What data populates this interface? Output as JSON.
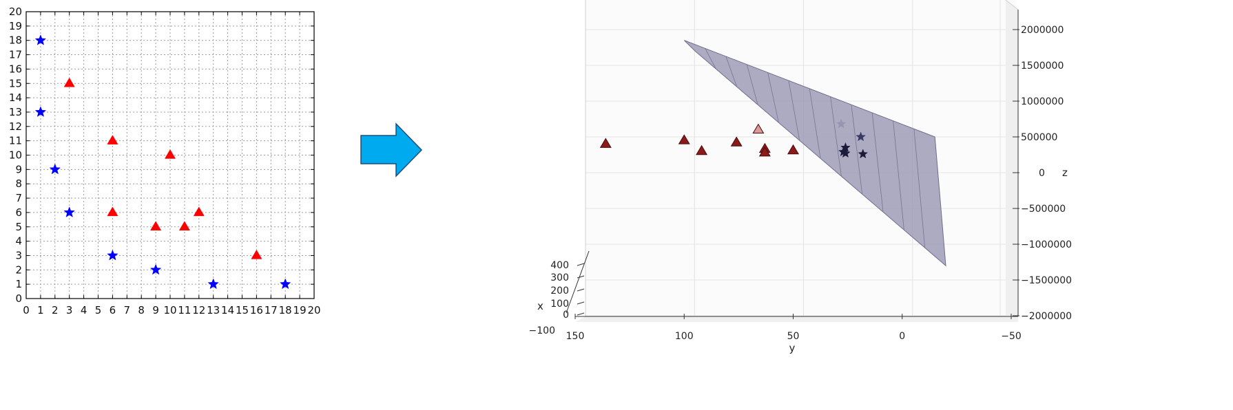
{
  "chart_data": [
    {
      "type": "scatter",
      "title": "",
      "xlabel": "",
      "ylabel": "",
      "xlim": [
        0,
        20
      ],
      "ylim": [
        0,
        20
      ],
      "xticks": [
        "0",
        "1",
        "2",
        "3",
        "4",
        "5",
        "6",
        "7",
        "8",
        "9",
        "10",
        "11",
        "12",
        "13",
        "14",
        "15",
        "16",
        "17",
        "18",
        "19",
        "20"
      ],
      "yticks": [
        "0",
        "1",
        "2",
        "3",
        "4",
        "5",
        "6",
        "7",
        "8",
        "9",
        "10",
        "11",
        "12",
        "13",
        "14",
        "15",
        "16",
        "17",
        "18",
        "19",
        "20"
      ],
      "grid": true,
      "series": [
        {
          "marker": "star",
          "color": "#0000ff",
          "points": [
            [
              1,
              18
            ],
            [
              1,
              13
            ],
            [
              2,
              9
            ],
            [
              3,
              6
            ],
            [
              6,
              3
            ],
            [
              9,
              2
            ],
            [
              13,
              1
            ],
            [
              18,
              1
            ]
          ]
        },
        {
          "marker": "triangle",
          "color": "#ff0000",
          "points": [
            [
              3,
              15
            ],
            [
              6,
              11
            ],
            [
              10,
              10
            ],
            [
              6,
              6
            ],
            [
              9,
              5
            ],
            [
              11,
              5
            ],
            [
              12,
              6
            ],
            [
              16,
              3
            ]
          ]
        }
      ]
    },
    {
      "type": "scatter",
      "projection": "3d",
      "title": "",
      "xlabel": "x",
      "ylabel": "y",
      "zlabel": "z",
      "ylim": [
        150,
        -50
      ],
      "zlim": [
        -2000000,
        2000000
      ],
      "yticks": [
        "150",
        "100",
        "50",
        "0",
        "−50"
      ],
      "zticks": [
        "2000000",
        "1500000",
        "1000000",
        "500000",
        "0",
        "−500000",
        "−1000000",
        "−1500000",
        "−2000000"
      ],
      "xticks": [
        "−100",
        "0",
        "100",
        "200",
        "300",
        "400"
      ],
      "surface": {
        "kind": "separating plane",
        "color": "#9a98b4",
        "corners_yz": [
          [
            100,
            1850000
          ],
          [
            -15,
            500000
          ],
          [
            -20,
            -1300000
          ],
          [
            95,
            1700000
          ]
        ]
      },
      "series": [
        {
          "marker": "triangle",
          "color": "#8b1a1a",
          "points": [
            [
              136,
              400000
            ],
            [
              100,
              450000
            ],
            [
              92,
              300000
            ],
            [
              76,
              420000
            ],
            [
              63,
              330000
            ],
            [
              63,
              280000
            ],
            [
              50,
              310000
            ],
            [
              66,
              600000
            ]
          ]
        },
        {
          "marker": "star",
          "color": "#1a1a3a",
          "points": [
            [
              28,
              680000
            ],
            [
              19,
              500000
            ],
            [
              26,
              350000
            ],
            [
              27,
              290000
            ],
            [
              26,
              270000
            ],
            [
              18,
              260000
            ]
          ]
        }
      ]
    }
  ],
  "arrow": {
    "color": "#00aaee",
    "direction": "right"
  }
}
